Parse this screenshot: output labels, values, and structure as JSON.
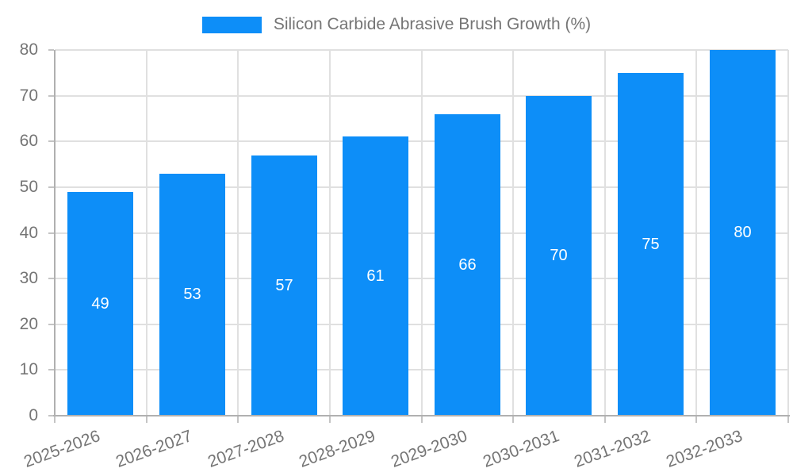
{
  "legend": {
    "label": "Silicon Carbide Abrasive Brush Growth (%)"
  },
  "chart_data": {
    "type": "bar",
    "title": "",
    "xlabel": "",
    "ylabel": "",
    "categories": [
      "2025-2026",
      "2026-2027",
      "2027-2028",
      "2028-2029",
      "2029-2030",
      "2030-2031",
      "2031-2032",
      "2032-2033"
    ],
    "values": [
      49,
      53,
      57,
      61,
      66,
      70,
      75,
      80
    ],
    "series_name": "Silicon Carbide Abrasive Brush Growth (%)",
    "value_labels": [
      "49",
      "53",
      "57",
      "61",
      "66",
      "70",
      "75",
      "80"
    ],
    "value_labels_visible": true,
    "ylim": [
      0,
      80
    ],
    "yticks": [
      0,
      10,
      20,
      30,
      40,
      50,
      60,
      70,
      80
    ],
    "grid": true,
    "legend_position": "top",
    "x_label_rotation_deg": -20,
    "colors": {
      "bar": "#0d8ef8",
      "value_label": "#ffffff",
      "axis_text": "#757575",
      "legend_text": "#757575",
      "gridline": "#e0e0e0",
      "axis_line": "#b0b0b0",
      "tick_mark": "#c4c4c4",
      "background": "#ffffff"
    }
  }
}
